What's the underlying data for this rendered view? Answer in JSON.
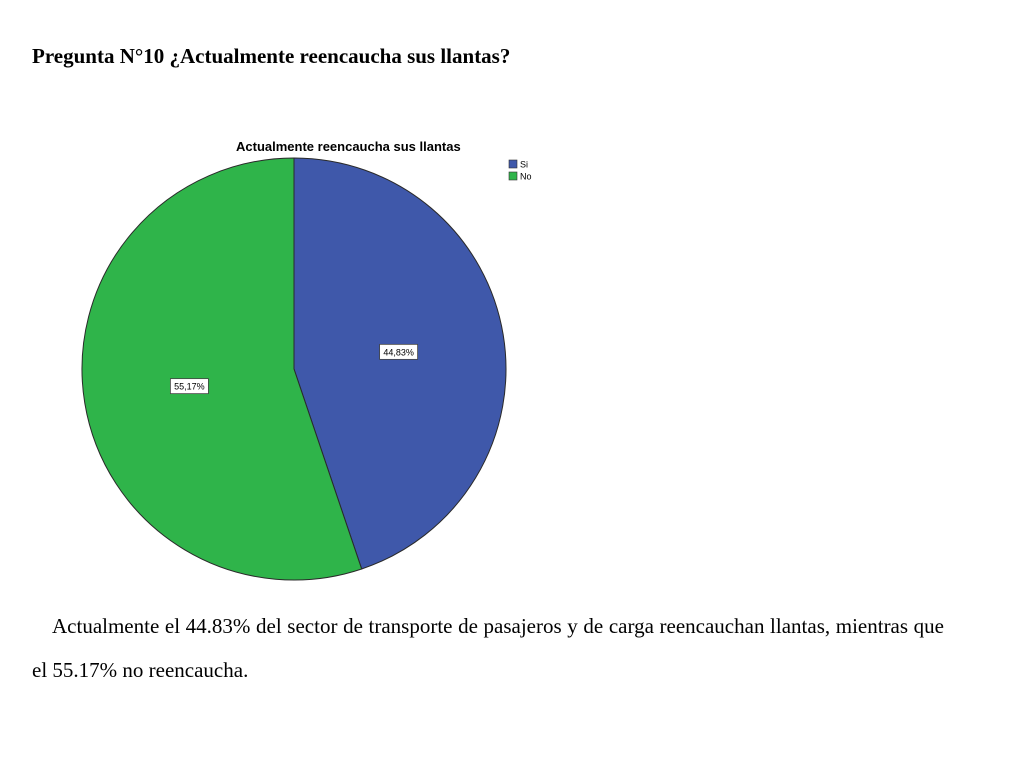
{
  "heading": "Pregunta N°10 ¿Actualmente reencaucha sus llantas?",
  "caption": "Actualmente el 44.83% del sector de transporte de pasajeros y de carga reencauchan llantas, mientras que el 55.17% no reencaucha.",
  "chart_data": {
    "type": "pie",
    "title": "Actualmente reencaucha sus llantas",
    "categories": [
      "Si",
      "No"
    ],
    "values": [
      44.83,
      55.17
    ],
    "labels": [
      "44,83%",
      "55,17%"
    ],
    "colors": [
      "#3f58aa",
      "#2fb44a"
    ],
    "start": "12 o'clock",
    "direction": "clockwise",
    "legend": "top-right"
  }
}
